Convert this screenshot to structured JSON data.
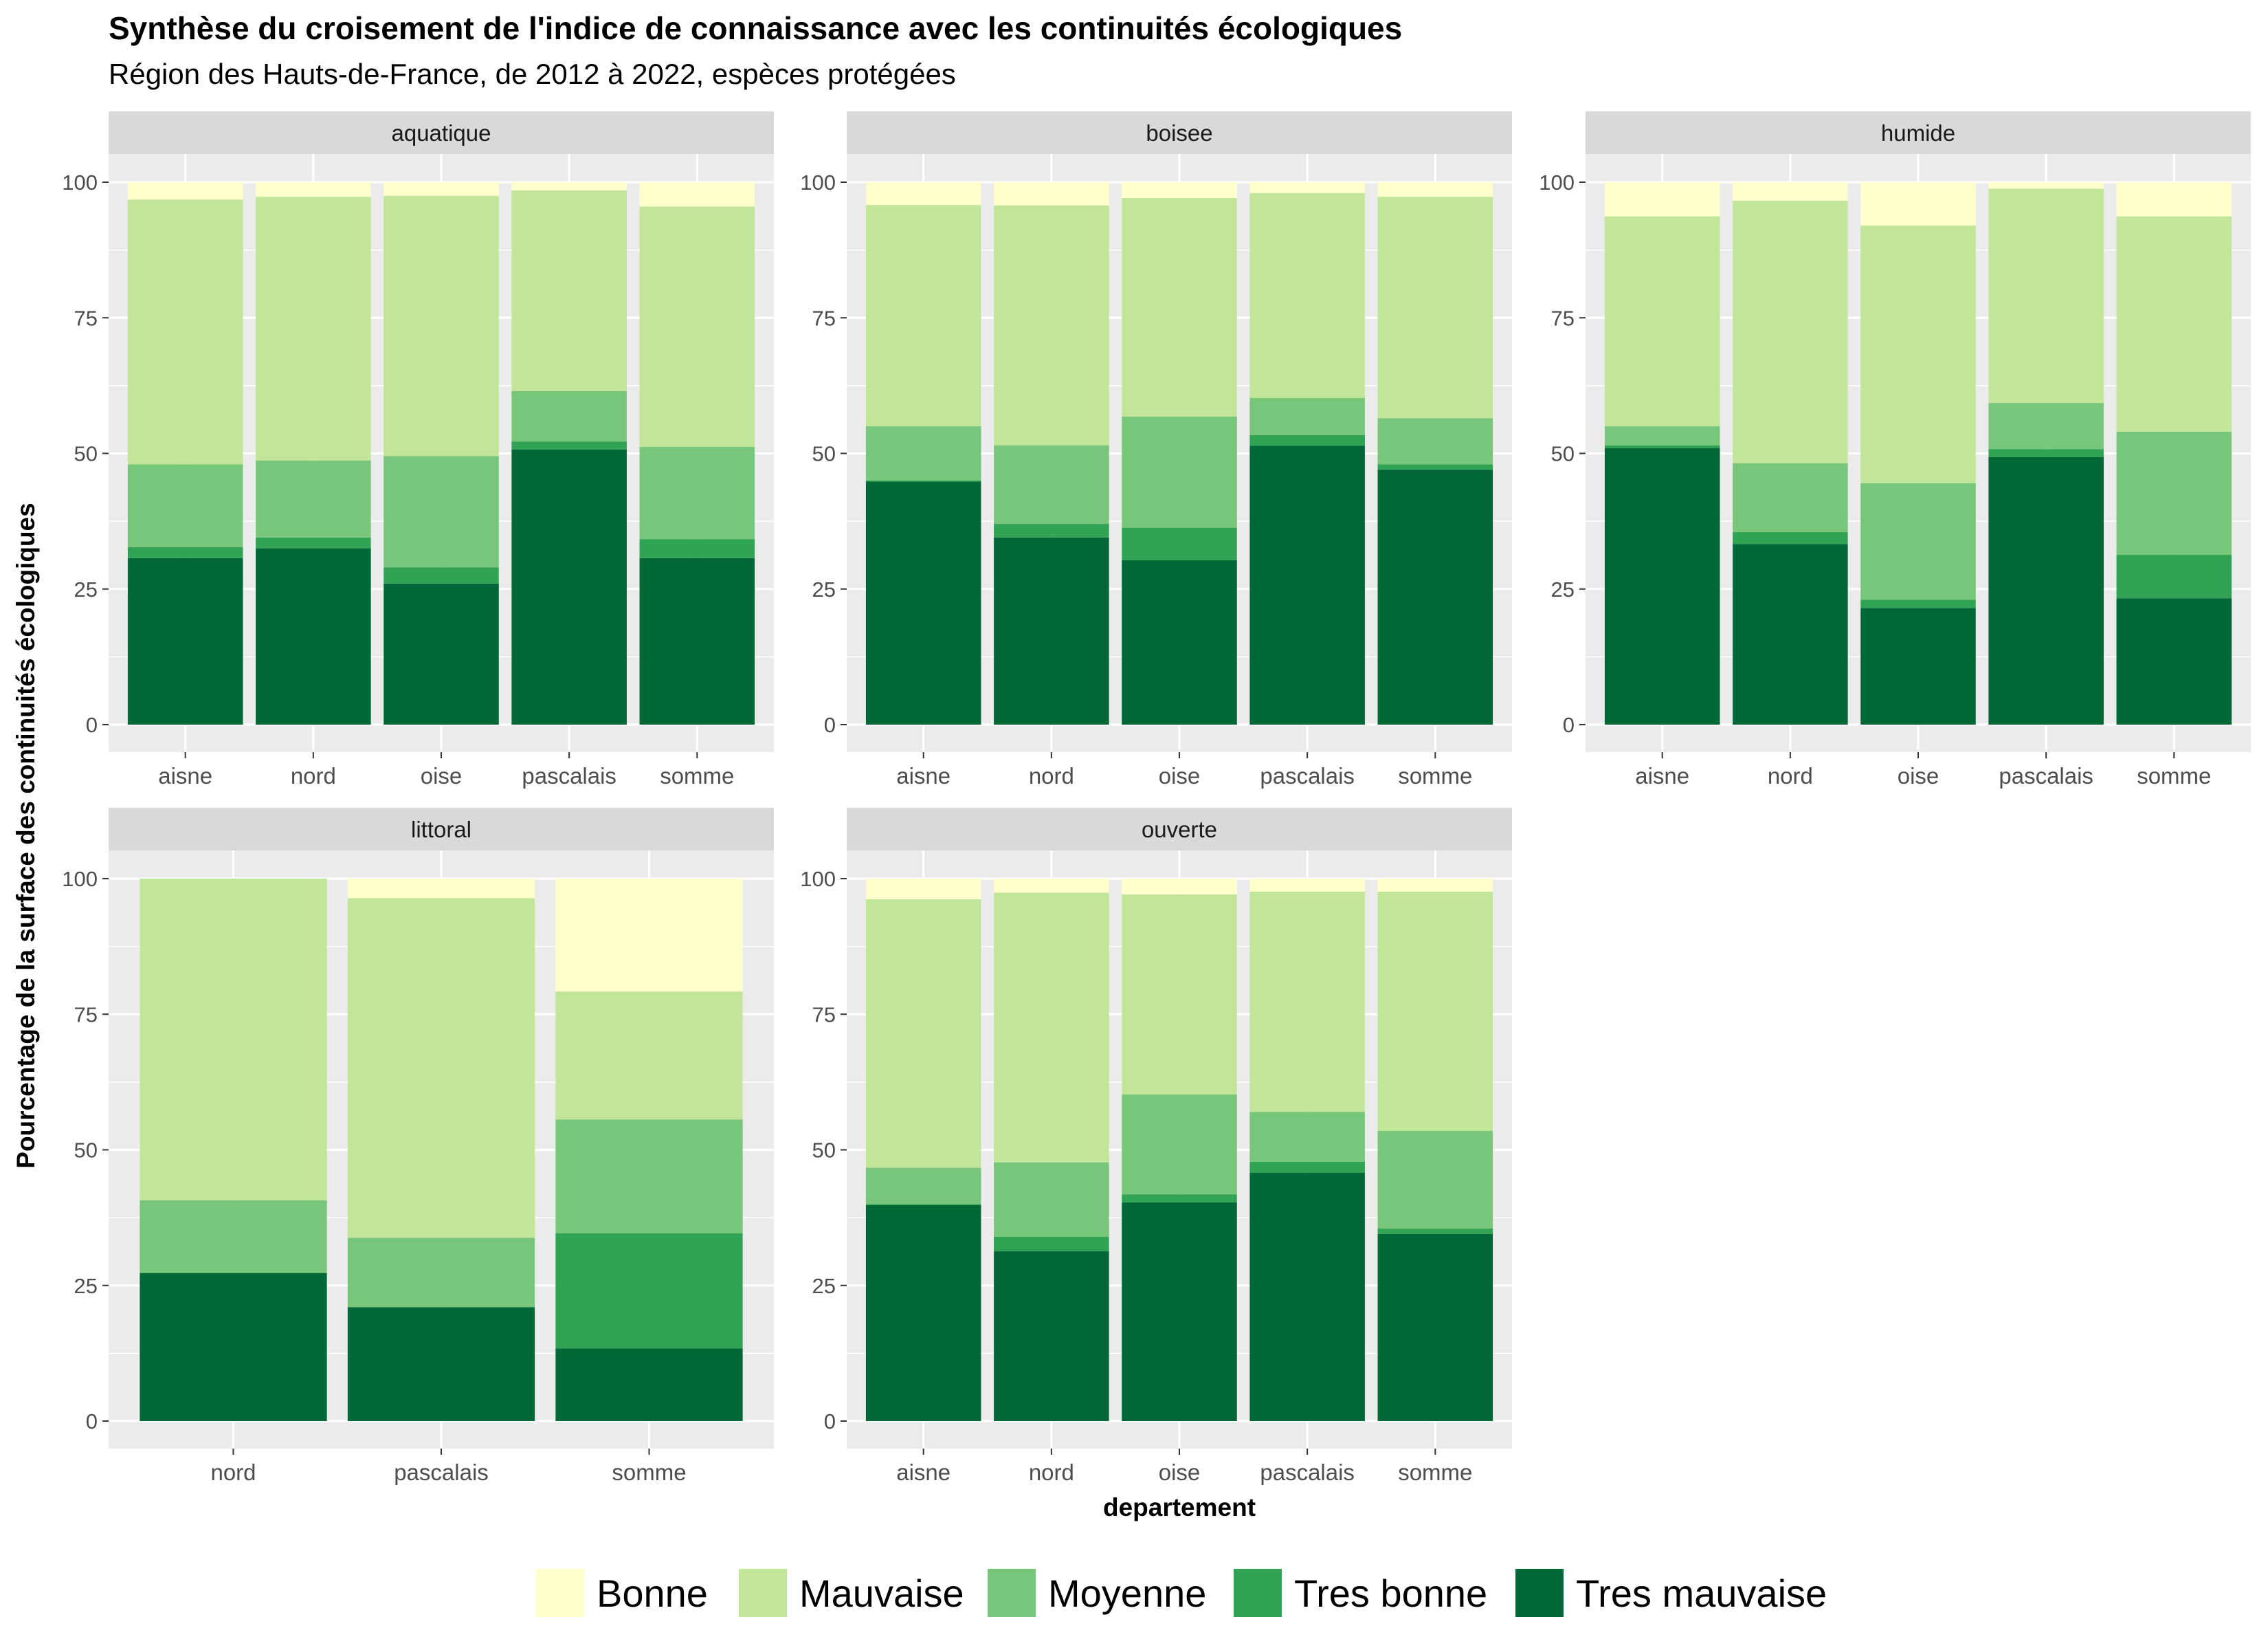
{
  "chart_data": {
    "type": "bar",
    "stacked": true,
    "title": "Synthèse du croisement de l'indice de connaissance avec les continuités écologiques",
    "subtitle": "Région des Hauts-de-France, de 2012 à 2022, espèces protégées",
    "xlabel": "departement",
    "ylabel": "Pourcentage de la surface des continuités écologiques",
    "ylim": [
      0,
      100
    ],
    "yticks": [
      0,
      25,
      50,
      75,
      100
    ],
    "grid": true,
    "legend_position": "bottom",
    "stack_order": [
      "Tres mauvaise",
      "Tres bonne",
      "Moyenne",
      "Mauvaise",
      "Bonne"
    ],
    "legend": [
      {
        "name": "Bonne",
        "color": "#ffffcc"
      },
      {
        "name": "Mauvaise",
        "color": "#c2e699"
      },
      {
        "name": "Moyenne",
        "color": "#78c679"
      },
      {
        "name": "Tres bonne",
        "color": "#31a354"
      },
      {
        "name": "Tres mauvaise",
        "color": "#006837"
      }
    ],
    "facets": [
      {
        "name": "aquatique",
        "categories": [
          "aisne",
          "nord",
          "oise",
          "pascalais",
          "somme"
        ],
        "series": [
          {
            "name": "Tres mauvaise",
            "values": [
              30.7,
              32.5,
              26.0,
              50.7,
              30.7
            ]
          },
          {
            "name": "Tres bonne",
            "values": [
              2.0,
              2.0,
              3.0,
              1.5,
              3.5
            ]
          },
          {
            "name": "Moyenne",
            "values": [
              15.3,
              14.2,
              20.5,
              9.3,
              17.0
            ]
          },
          {
            "name": "Mauvaise",
            "values": [
              48.8,
              48.6,
              48.0,
              37.0,
              44.3
            ]
          },
          {
            "name": "Bonne",
            "values": [
              3.2,
              2.7,
              2.5,
              1.5,
              4.5
            ]
          }
        ]
      },
      {
        "name": "boisee",
        "categories": [
          "aisne",
          "nord",
          "oise",
          "pascalais",
          "somme"
        ],
        "series": [
          {
            "name": "Tres mauvaise",
            "values": [
              44.8,
              34.5,
              30.3,
              51.4,
              47.0
            ]
          },
          {
            "name": "Tres bonne",
            "values": [
              0.2,
              2.5,
              6.0,
              2.0,
              1.0
            ]
          },
          {
            "name": "Moyenne",
            "values": [
              10.0,
              14.5,
              20.5,
              6.8,
              8.5
            ]
          },
          {
            "name": "Mauvaise",
            "values": [
              40.8,
              44.2,
              40.3,
              37.8,
              40.8
            ]
          },
          {
            "name": "Bonne",
            "values": [
              4.2,
              4.3,
              2.9,
              2.0,
              2.7
            ]
          }
        ]
      },
      {
        "name": "humide",
        "categories": [
          "aisne",
          "nord",
          "oise",
          "pascalais",
          "somme"
        ],
        "series": [
          {
            "name": "Tres mauvaise",
            "values": [
              51.0,
              33.3,
              21.5,
              49.3,
              23.3
            ]
          },
          {
            "name": "Tres bonne",
            "values": [
              0.5,
              2.2,
              1.5,
              1.5,
              8.0
            ]
          },
          {
            "name": "Moyenne",
            "values": [
              3.5,
              12.7,
              21.5,
              8.5,
              22.7
            ]
          },
          {
            "name": "Mauvaise",
            "values": [
              38.7,
              48.4,
              47.5,
              39.5,
              39.7
            ]
          },
          {
            "name": "Bonne",
            "values": [
              6.3,
              3.4,
              8.0,
              1.2,
              6.3
            ]
          }
        ]
      },
      {
        "name": "littoral",
        "categories": [
          "nord",
          "pascalais",
          "somme"
        ],
        "series": [
          {
            "name": "Tres mauvaise",
            "values": [
              27.3,
              21.0,
              13.4
            ]
          },
          {
            "name": "Tres bonne",
            "values": [
              0.0,
              0.0,
              21.2
            ]
          },
          {
            "name": "Moyenne",
            "values": [
              13.4,
              12.8,
              21.0
            ]
          },
          {
            "name": "Mauvaise",
            "values": [
              59.3,
              62.6,
              23.6
            ]
          },
          {
            "name": "Bonne",
            "values": [
              0.0,
              3.6,
              20.8
            ]
          }
        ]
      },
      {
        "name": "ouverte",
        "categories": [
          "aisne",
          "nord",
          "oise",
          "pascalais",
          "somme"
        ],
        "series": [
          {
            "name": "Tres mauvaise",
            "values": [
              39.8,
              31.3,
              40.3,
              45.8,
              34.5
            ]
          },
          {
            "name": "Tres bonne",
            "values": [
              0.2,
              2.7,
              1.5,
              2.0,
              1.0
            ]
          },
          {
            "name": "Moyenne",
            "values": [
              6.7,
              13.7,
              18.4,
              9.2,
              18.0
            ]
          },
          {
            "name": "Mauvaise",
            "values": [
              49.5,
              49.7,
              36.9,
              40.6,
              44.1
            ]
          },
          {
            "name": "Bonne",
            "values": [
              3.8,
              2.6,
              2.9,
              2.4,
              2.4
            ]
          }
        ]
      }
    ]
  }
}
